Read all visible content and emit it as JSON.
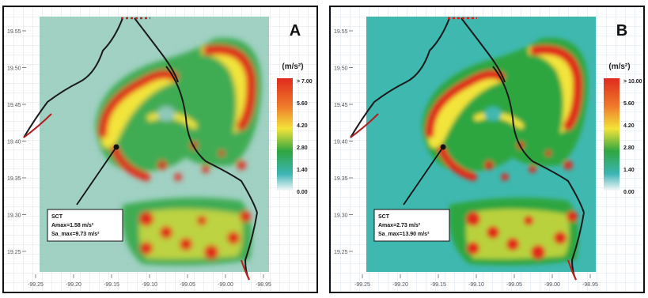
{
  "panels": [
    {
      "letter": "A",
      "unit_label": "(m/s²)",
      "scale_labels": [
        "> 7.00",
        "5.60",
        "4.20",
        "2.80",
        "1.40",
        "0.00"
      ],
      "callout": [
        "SCT",
        "Amax=1.58 m/s²",
        "Sa_max=9.73 m/s²"
      ],
      "background": "#8fc9b9"
    },
    {
      "letter": "B",
      "unit_label": "(m/s²)",
      "scale_labels": [
        "> 10.00",
        "5.60",
        "4.20",
        "2.80",
        "1.40",
        "0.00"
      ],
      "callout": [
        "SCT",
        "Amax=2.73 m/s²",
        "Sa_max=13.90 m/s²"
      ],
      "background": "#3fb8b0"
    }
  ],
  "axes": {
    "lat_labels": [
      "19.55",
      "19.50",
      "19.45",
      "19.40",
      "19.35",
      "19.30",
      "19.25"
    ],
    "lon_labels": [
      "-99.25",
      "-99.20",
      "-99.15",
      "-99.10",
      "-99.05",
      "-99.00",
      "-98.95"
    ]
  },
  "colors": {
    "red": "#e02a1e",
    "yellow": "#f2e43a",
    "green": "#2fa640",
    "cyan": "#3cb4b4",
    "white": "#f4f8f8"
  }
}
